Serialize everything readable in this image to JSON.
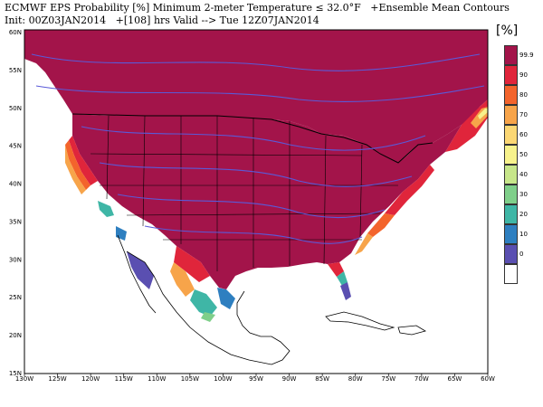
{
  "header": {
    "title_line1": "ECMWF EPS Probability [%] Minimum 2-meter Temperature ≤ 32.0°F   +Ensemble Mean Contours",
    "title_line2": "Init: 00Z03JAN2014   +[108] hrs Valid --> Tue 12Z07JAN2014"
  },
  "map": {
    "x_ticks": [
      "130W",
      "125W",
      "120W",
      "115W",
      "110W",
      "105W",
      "100W",
      "95W",
      "90W",
      "85W",
      "80W",
      "75W",
      "70W",
      "65W",
      "60W"
    ],
    "y_ticks": [
      "60N",
      "55N",
      "50N",
      "45N",
      "40N",
      "35N",
      "30N",
      "25N",
      "20N",
      "15N"
    ],
    "colors": {
      "ocean": "#ffffff",
      "prob_99": "#a3144a",
      "contour": "#5a5ad8",
      "border": "#000000"
    }
  },
  "legend": {
    "title": "[%]",
    "items": [
      {
        "label": "99.9",
        "color": "#a3144a"
      },
      {
        "label": "90",
        "color": "#e0253b"
      },
      {
        "label": "80",
        "color": "#f3642c"
      },
      {
        "label": "70",
        "color": "#f7a44a"
      },
      {
        "label": "60",
        "color": "#fbd774"
      },
      {
        "label": "50",
        "color": "#f7f28c"
      },
      {
        "label": "40",
        "color": "#c7e68a"
      },
      {
        "label": "30",
        "color": "#7fcf8a"
      },
      {
        "label": "20",
        "color": "#3fb6a6"
      },
      {
        "label": "10",
        "color": "#2e7fc0"
      },
      {
        "label": "0",
        "color": "#5a4fb1"
      },
      {
        "label": "",
        "color": "#ffffff"
      }
    ]
  }
}
